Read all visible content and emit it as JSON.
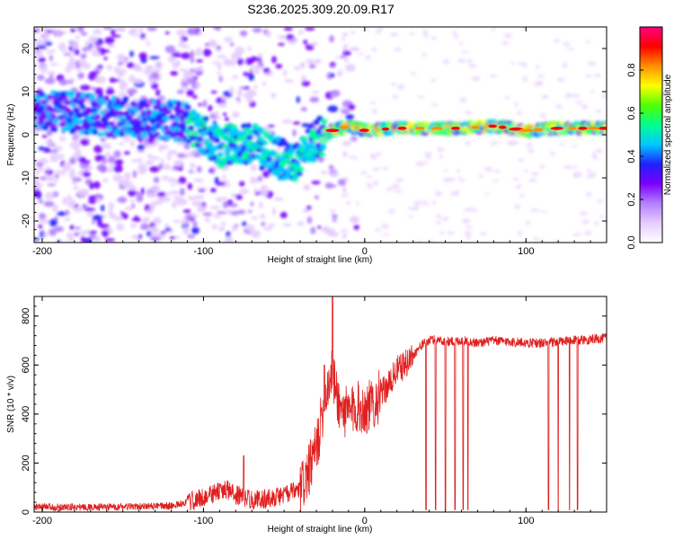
{
  "title": "S236.2025.309.20.09.R17",
  "chart_data": [
    {
      "type": "heatmap",
      "xlabel": "Height of straight line (km)",
      "ylabel": "Frequency (Hz)",
      "xlim": [
        -205,
        150
      ],
      "ylim": [
        -25,
        25
      ],
      "xticks": [
        -200,
        -100,
        0,
        100
      ],
      "yticks": [
        -20,
        -10,
        0,
        10,
        20
      ],
      "colorbar": {
        "label": "Normalized spectral amplitude",
        "range": [
          0,
          1
        ],
        "ticks": [
          "0.0",
          "0.2",
          "0.4",
          "0.6",
          "0.8"
        ],
        "colors": [
          "#ffffff",
          "#e6ccff",
          "#b380ff",
          "#7a00ff",
          "#2020ff",
          "#00c8ff",
          "#00ff90",
          "#50ff00",
          "#ffff00",
          "#ff9000",
          "#ff0000",
          "#ff0080"
        ]
      },
      "ridge": [
        {
          "x": -200,
          "f": 6
        },
        {
          "x": -175,
          "f": 5
        },
        {
          "x": -150,
          "f": 4
        },
        {
          "x": -125,
          "f": 3.5
        },
        {
          "x": -110,
          "f": 3
        },
        {
          "x": -100,
          "f": 0
        },
        {
          "x": -90,
          "f": -3
        },
        {
          "x": -80,
          "f": -2
        },
        {
          "x": -70,
          "f": -2
        },
        {
          "x": -60,
          "f": -4
        },
        {
          "x": -50,
          "f": -6
        },
        {
          "x": -40,
          "f": -6
        },
        {
          "x": -35,
          "f": -3
        },
        {
          "x": -30,
          "f": -1
        },
        {
          "x": -25,
          "f": 0
        },
        {
          "x": -20,
          "f": 1
        },
        {
          "x": -10,
          "f": 2
        },
        {
          "x": 0,
          "f": 1
        },
        {
          "x": 20,
          "f": 1.5
        },
        {
          "x": 40,
          "f": 1.5
        },
        {
          "x": 60,
          "f": 1.5
        },
        {
          "x": 80,
          "f": 2
        },
        {
          "x": 100,
          "f": 1
        },
        {
          "x": 120,
          "f": 1.5
        },
        {
          "x": 150,
          "f": 1.5
        }
      ]
    },
    {
      "type": "line",
      "xlabel": "Height of straight line (km)",
      "ylabel": "SNR (10 * v/v)",
      "xlim": [
        -205,
        150
      ],
      "ylim": [
        0,
        880
      ],
      "xticks": [
        -200,
        -100,
        0,
        100
      ],
      "yticks": [
        0,
        200,
        400,
        600,
        800
      ],
      "color": "#e02020",
      "series": [
        {
          "x": [
            -205,
            -180,
            -160,
            -140,
            -120,
            -110,
            -100,
            -90,
            -85,
            -80,
            -75,
            -70,
            -60,
            -50,
            -40,
            -35,
            -30,
            -28,
            -25,
            -22,
            -20,
            -18,
            -15,
            -10,
            -5,
            0,
            5,
            10,
            15,
            20,
            25,
            30,
            35,
            40,
            45,
            50,
            60,
            70,
            80,
            90,
            100,
            110,
            120,
            130,
            140,
            150
          ],
          "values": [
            20,
            20,
            20,
            22,
            25,
            40,
            60,
            85,
            90,
            70,
            60,
            50,
            55,
            70,
            90,
            160,
            260,
            330,
            460,
            540,
            560,
            500,
            420,
            400,
            430,
            420,
            440,
            480,
            520,
            580,
            600,
            640,
            680,
            700,
            705,
            695,
            700,
            690,
            700,
            695,
            690,
            690,
            695,
            700,
            705,
            710
          ]
        }
      ],
      "spikes": [
        {
          "x": -20,
          "value": 880
        },
        {
          "x": -25,
          "value": 600
        },
        {
          "x": -75,
          "value": 230
        }
      ],
      "dropouts": [
        38,
        44,
        50,
        56,
        61,
        64,
        114,
        120,
        127,
        132
      ]
    }
  ]
}
